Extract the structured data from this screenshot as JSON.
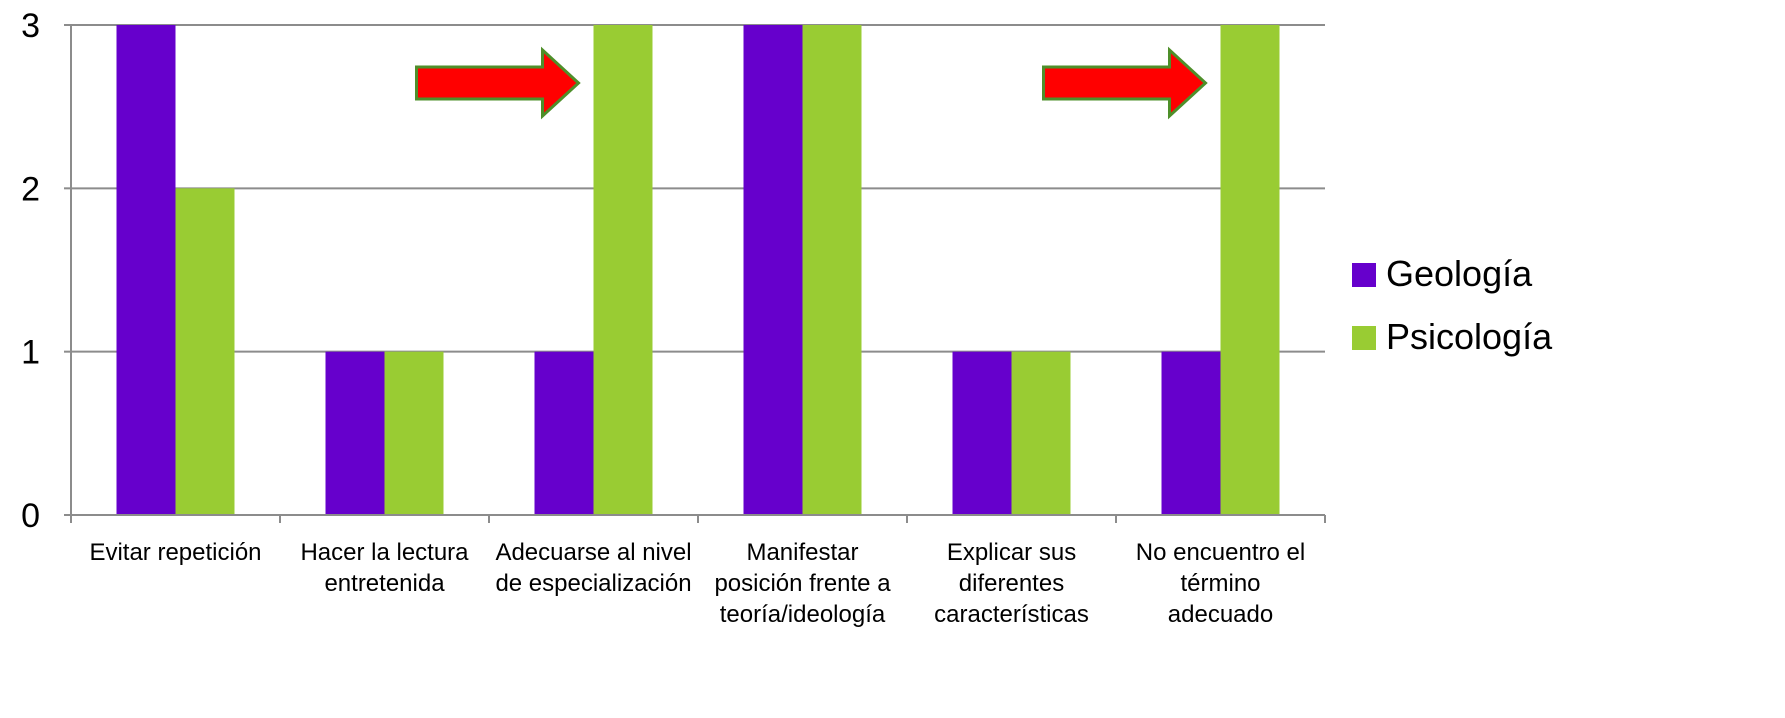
{
  "chart_data": {
    "type": "bar",
    "categories": [
      [
        "Evitar repetición"
      ],
      [
        "Hacer la lectura",
        "entretenida"
      ],
      [
        "Adecuarse al nivel",
        "de especialización"
      ],
      [
        "Manifestar",
        "posición frente a",
        "teoría/ideología"
      ],
      [
        "Explicar sus",
        "diferentes",
        "características"
      ],
      [
        "No encuentro el",
        "término",
        "adecuado"
      ]
    ],
    "series": [
      {
        "name": "Geología",
        "color": "#6600CC",
        "values": [
          3,
          1,
          1,
          3,
          1,
          1
        ]
      },
      {
        "name": "Psicología",
        "color": "#99CC33",
        "values": [
          2,
          1,
          3,
          3,
          1,
          3
        ]
      }
    ],
    "ylim": [
      0,
      3
    ],
    "yticks": [
      "0",
      "1",
      "2",
      "3"
    ],
    "grid": true,
    "legend_position": "right",
    "annotations": [
      {
        "type": "arrow-right",
        "color": "#FF0000",
        "outline": "#4E8F2A",
        "category_index": 2
      },
      {
        "type": "arrow-right",
        "color": "#FF0000",
        "outline": "#4E8F2A",
        "category_index": 5
      }
    ]
  }
}
